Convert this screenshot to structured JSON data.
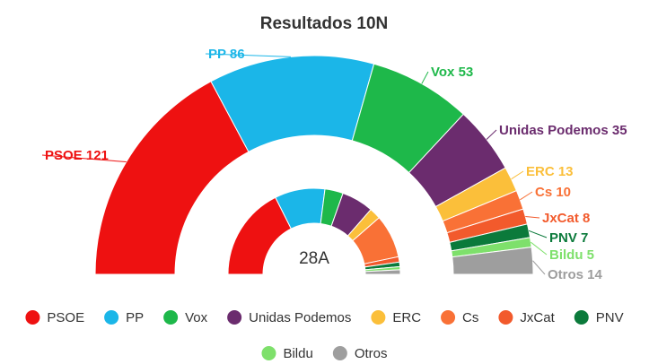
{
  "chart_data": {
    "type": "pie",
    "title": "Resultados 10N",
    "series": [
      {
        "name": "10N",
        "labels": [
          "PSOE 121",
          "PP 86",
          "Vox 53",
          "Unidas Podemos 35",
          "ERC 13",
          "Cs 10",
          "JxCat 8",
          "PNV 7",
          "Bildu 5",
          "Otros 14"
        ],
        "categories": [
          "PSOE",
          "PP",
          "Vox",
          "Unidas Podemos",
          "ERC",
          "Cs",
          "JxCat",
          "PNV",
          "Bildu",
          "Otros"
        ],
        "values": [
          121,
          86,
          53,
          35,
          13,
          10,
          8,
          7,
          5,
          14
        ]
      },
      {
        "name": "28A",
        "categories": [
          "PSOE",
          "PP",
          "Vox",
          "Unidas Podemos",
          "ERC",
          "Cs",
          "JxCat",
          "PNV",
          "Bildu",
          "Otros"
        ],
        "values": [
          123,
          66,
          24,
          42,
          15,
          57,
          7,
          6,
          4,
          6
        ]
      }
    ],
    "center_label": "28A",
    "colors": [
      "#ee1111",
      "#1bb6e8",
      "#1eb84a",
      "#6b2c6e",
      "#fbbf3a",
      "#f97136",
      "#f25a2c",
      "#0b7a3b",
      "#7ee06b",
      "#9e9e9e"
    ],
    "label_colors": [
      "#ee1111",
      "#1bb6e8",
      "#1eb84a",
      "#6b2c6e",
      "#fbbf3a",
      "#f97136",
      "#f25a2c",
      "#0b7a3b",
      "#7ee06b",
      "#9e9e9e"
    ],
    "legend": [
      "PSOE",
      "PP",
      "Vox",
      "Unidas Podemos",
      "ERC",
      "Cs",
      "JxCat",
      "PNV",
      "Bildu",
      "Otros"
    ],
    "legend_position": "bottom"
  }
}
